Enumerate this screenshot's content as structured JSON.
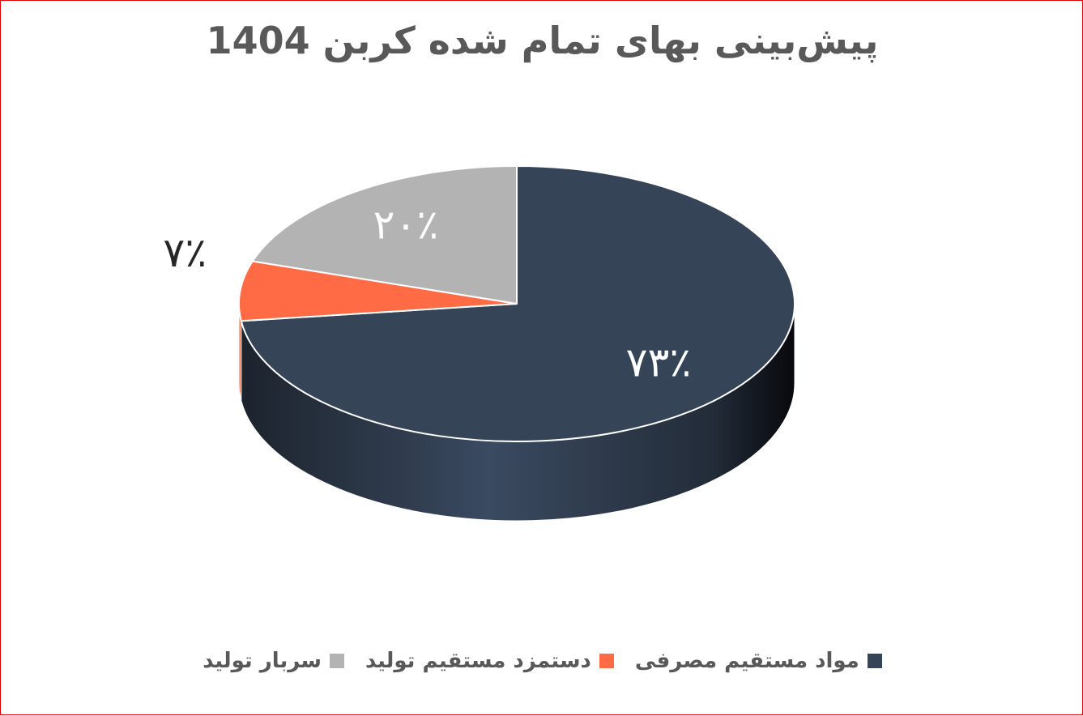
{
  "chart_data": {
    "type": "pie3d",
    "title": "پیش‌بینی بهای تمام شده کربن 1404",
    "categories": [
      "مواد مستقیم مصرفی",
      "دستمزد مستقیم تولید",
      "سربار تولید"
    ],
    "values": [
      73,
      7,
      20
    ],
    "value_labels": [
      "۷۳٪",
      "۷٪",
      "۲۰٪"
    ],
    "colors": [
      "#364458",
      "#ff6b45",
      "#b3b3b3"
    ],
    "label_colors": [
      "#ffffff",
      "#262626",
      "#ffffff"
    ],
    "legend": "bottom"
  }
}
